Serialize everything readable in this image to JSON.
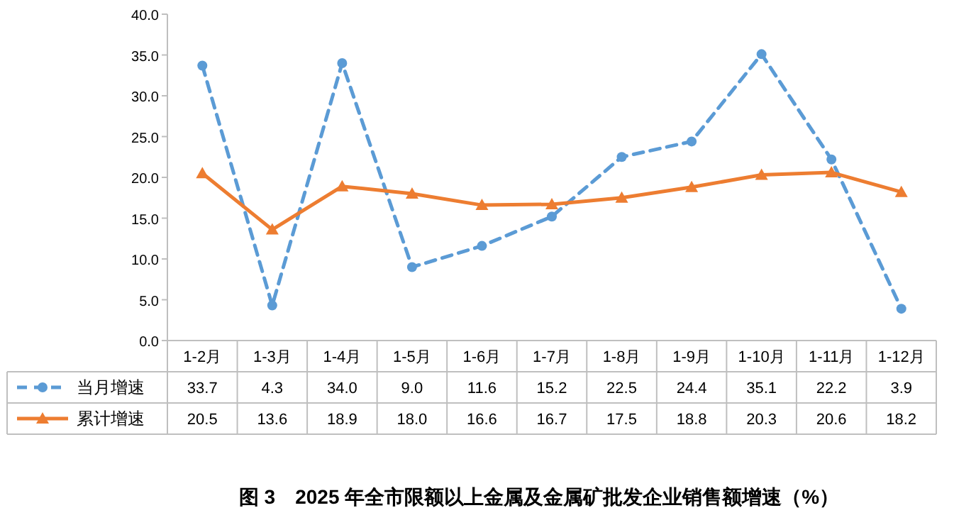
{
  "chart_data": {
    "type": "line",
    "title": "图 3　2025 年全市限额以上金属及金属矿批发企业销售额增速（%）",
    "categories": [
      "1-2月",
      "1-3月",
      "1-4月",
      "1-5月",
      "1-6月",
      "1-7月",
      "1-8月",
      "1-9月",
      "1-10月",
      "1-11月",
      "1-12月"
    ],
    "series": [
      {
        "name": "当月增速",
        "color": "#5b9bd5",
        "line_style": "dashed",
        "marker": "circle",
        "values": [
          33.7,
          4.3,
          34.0,
          9.0,
          11.6,
          15.2,
          22.5,
          24.4,
          35.1,
          22.2,
          3.9
        ],
        "value_labels": [
          "33.7",
          "4.3",
          "34.0",
          "9.0",
          "11.6",
          "15.2",
          "22.5",
          "24.4",
          "35.1",
          "22.2",
          "3.9"
        ]
      },
      {
        "name": "累计增速",
        "color": "#ed7d31",
        "line_style": "solid",
        "marker": "triangle",
        "values": [
          20.5,
          13.6,
          18.9,
          18.0,
          16.6,
          16.7,
          17.5,
          18.8,
          20.3,
          20.6,
          18.2
        ],
        "value_labels": [
          "20.5",
          "13.6",
          "18.9",
          "18.0",
          "16.6",
          "16.7",
          "17.5",
          "18.8",
          "20.3",
          "20.6",
          "18.2"
        ]
      }
    ],
    "ylim": [
      0,
      40
    ],
    "yticks": [
      {
        "value": 0,
        "label": "0.0"
      },
      {
        "value": 5,
        "label": "5.0"
      },
      {
        "value": 10,
        "label": "10.0"
      },
      {
        "value": 15,
        "label": "15.0"
      },
      {
        "value": 20,
        "label": "20.0"
      },
      {
        "value": 25,
        "label": "25.0"
      },
      {
        "value": 30,
        "label": "30.0"
      },
      {
        "value": 35,
        "label": "35.0"
      },
      {
        "value": 40,
        "label": "40.0"
      }
    ],
    "legend": "bottom left"
  }
}
